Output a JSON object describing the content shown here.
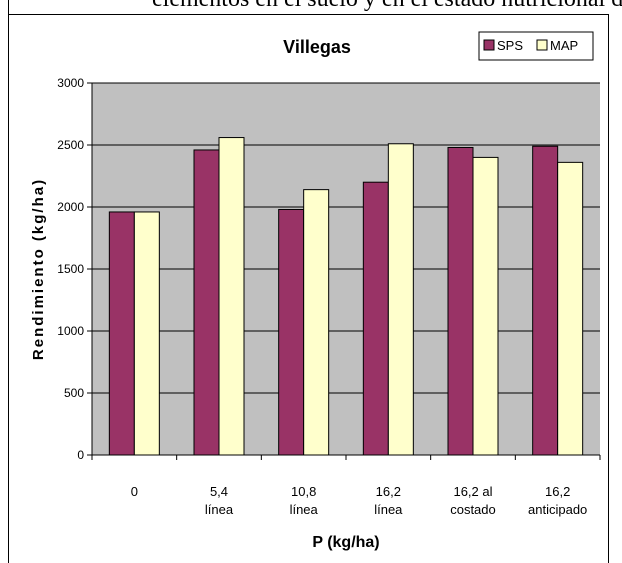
{
  "page_top_text": "elementos en el suelo y en el estado nutricional de la planta, su rendimiento. Según esto ocurrió que",
  "chart_data": {
    "type": "bar",
    "title": "Villegas",
    "xlabel": "P (kg/ha)",
    "ylabel": "Rendimiento (kg/ha)",
    "ylim": [
      0,
      3000
    ],
    "yticks": [
      0,
      500,
      1000,
      1500,
      2000,
      2500,
      3000
    ],
    "categories": [
      [
        "0"
      ],
      [
        "5,4",
        "línea"
      ],
      [
        "10,8",
        "línea"
      ],
      [
        "16,2",
        "línea"
      ],
      [
        "16,2 al",
        "costado"
      ],
      [
        "16,2",
        "anticipado"
      ]
    ],
    "series": [
      {
        "name": "SPS",
        "color": "#993366",
        "values": [
          1960,
          2460,
          1980,
          2200,
          2480,
          2490
        ]
      },
      {
        "name": "MAP",
        "color": "#ffffcc",
        "values": [
          1960,
          2560,
          2140,
          2510,
          2400,
          2360
        ]
      }
    ],
    "grid": true,
    "plot_background": "#c0c0c0",
    "legend_position": "top-right"
  }
}
